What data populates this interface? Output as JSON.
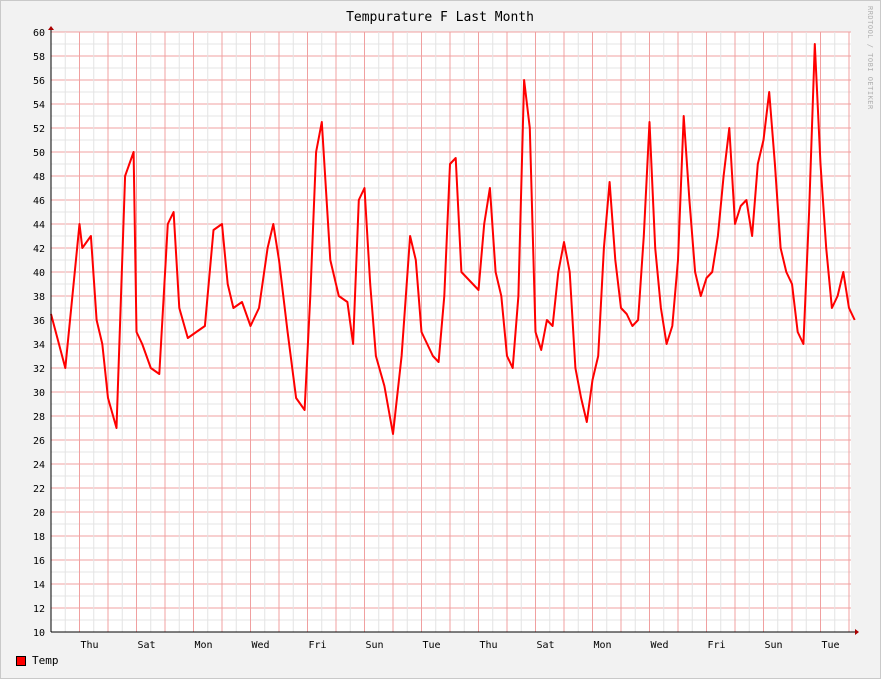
{
  "chart_data": {
    "type": "line",
    "title": "Tempurature F Last Month",
    "ylim": [
      10,
      60
    ],
    "y_ticks": [
      10,
      12,
      14,
      16,
      18,
      20,
      22,
      24,
      26,
      28,
      30,
      32,
      34,
      36,
      38,
      40,
      42,
      44,
      46,
      48,
      50,
      52,
      54,
      56,
      58,
      60
    ],
    "x_tick_labels": [
      "Thu",
      "Sat",
      "Mon",
      "Wed",
      "Fri",
      "Sun",
      "Tue",
      "Thu",
      "Sat",
      "Mon",
      "Wed",
      "Fri",
      "Sun",
      "Tue"
    ],
    "grid": true,
    "legend_position": "bottom-left",
    "watermark": "RRDTOOL / TOBI OETIKER",
    "series": [
      {
        "name": "Temp",
        "color": "#ff0000",
        "x": [
          0.0,
          0.5,
          1.0,
          1.1,
          1.4,
          1.6,
          1.8,
          2.0,
          2.3,
          2.6,
          2.9,
          3.0,
          3.2,
          3.5,
          3.8,
          4.1,
          4.3,
          4.5,
          4.8,
          5.1,
          5.4,
          5.7,
          6.0,
          6.2,
          6.4,
          6.7,
          7.0,
          7.3,
          7.6,
          7.8,
          8.0,
          8.3,
          8.6,
          8.9,
          9.1,
          9.3,
          9.5,
          9.8,
          10.1,
          10.4,
          10.6,
          10.8,
          11.0,
          11.2,
          11.4,
          11.7,
          12.0,
          12.3,
          12.6,
          12.8,
          13.0,
          13.2,
          13.4,
          13.6,
          13.8,
          14.0,
          14.2,
          14.4,
          14.6,
          14.8,
          15.0,
          15.2,
          15.4,
          15.6,
          15.8,
          16.0,
          16.2,
          16.4,
          16.6,
          16.8,
          17.0,
          17.2,
          17.4,
          17.6,
          17.8,
          18.0,
          18.2,
          18.4,
          18.6,
          18.8,
          19.0,
          19.2,
          19.4,
          19.6,
          19.8,
          20.0,
          20.2,
          20.4,
          20.6,
          20.8,
          21.0,
          21.2,
          21.4,
          21.6,
          21.8,
          22.0,
          22.2,
          22.4,
          22.6,
          22.8,
          23.0,
          23.2,
          23.4,
          23.6,
          23.8,
          24.0,
          24.2,
          24.4,
          24.6,
          24.8,
          25.0,
          25.2,
          25.4,
          25.6,
          25.8,
          26.0,
          26.2,
          26.4,
          26.6,
          26.8,
          27.0,
          27.2,
          27.4,
          27.6,
          27.8,
          28.0,
          28.2
        ],
        "values": [
          36.5,
          32.0,
          44.0,
          42.0,
          43.0,
          36.0,
          34.0,
          29.5,
          27.0,
          48.0,
          50.0,
          35.0,
          34.0,
          32.0,
          31.5,
          44.0,
          45.0,
          37.0,
          34.5,
          35.0,
          35.5,
          43.5,
          44.0,
          39.0,
          37.0,
          37.5,
          35.5,
          37.0,
          42.0,
          44.0,
          41.0,
          35.0,
          29.5,
          28.5,
          38.0,
          50.0,
          52.5,
          41.0,
          38.0,
          37.5,
          34.0,
          46.0,
          47.0,
          39.0,
          33.0,
          30.5,
          26.5,
          33.0,
          43.0,
          41.0,
          35.0,
          34.0,
          33.0,
          32.5,
          38.0,
          49.0,
          49.5,
          40.0,
          39.5,
          39.0,
          38.5,
          44.0,
          47.0,
          40.0,
          38.0,
          33.0,
          32.0,
          38.0,
          56.0,
          52.0,
          35.0,
          33.5,
          36.0,
          35.5,
          40.0,
          42.5,
          40.0,
          32.0,
          29.5,
          27.5,
          31.0,
          33.0,
          42.0,
          47.5,
          41.0,
          37.0,
          36.5,
          35.5,
          36.0,
          43.0,
          52.5,
          42.0,
          37.0,
          34.0,
          35.5,
          41.0,
          53.0,
          46.0,
          40.0,
          38.0,
          39.5,
          40.0,
          43.0,
          48.0,
          52.0,
          44.0,
          45.5,
          46.0,
          43.0,
          49.0,
          51.0,
          55.0,
          49.0,
          42.0,
          40.0,
          39.0,
          35.0,
          34.0,
          45.0,
          59.0,
          49.0,
          42.0,
          37.0,
          38.0,
          40.0,
          37.0,
          36.0
        ]
      }
    ]
  }
}
